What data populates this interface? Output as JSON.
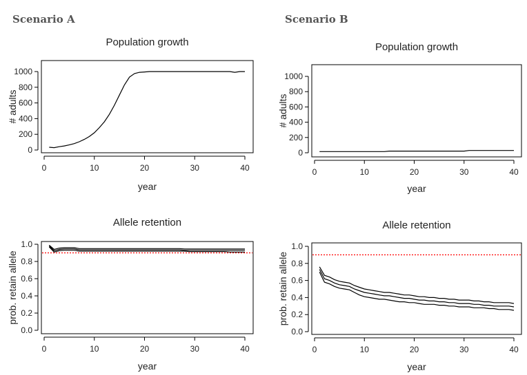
{
  "scenarios": [
    "Scenario A",
    "Scenario B"
  ],
  "colors": {
    "line": "#000000",
    "threshold": "#ff0000"
  },
  "chart_data": [
    {
      "scenario": "Scenario A",
      "type": "line",
      "title": "Population growth",
      "xlabel": "year",
      "ylabel": "# adults",
      "xlim": [
        0,
        40
      ],
      "ylim": [
        0,
        1100
      ],
      "xticks": [
        0,
        10,
        20,
        30,
        40
      ],
      "yticks": [
        0,
        200,
        400,
        600,
        800,
        1000
      ],
      "grid": false,
      "x_start": 1,
      "series": [
        {
          "values": [
            35,
            30,
            42,
            52,
            65,
            82,
            105,
            135,
            172,
            220,
            285,
            360,
            455,
            570,
            700,
            830,
            930,
            975,
            990,
            995,
            1000,
            1000,
            1000,
            1000,
            1000,
            1000,
            1000,
            1000,
            1000,
            1000,
            1000,
            1000,
            1000,
            1000,
            1000,
            1000,
            1000,
            990,
            1000,
            1000
          ]
        }
      ]
    },
    {
      "scenario": "Scenario B",
      "type": "line",
      "title": "Population growth",
      "xlabel": "year",
      "ylabel": "# adults",
      "xlim": [
        0,
        40
      ],
      "ylim": [
        0,
        1100
      ],
      "xticks": [
        0,
        10,
        20,
        30,
        40
      ],
      "yticks": [
        0,
        200,
        400,
        600,
        800,
        1000
      ],
      "grid": false,
      "x_start": 1,
      "series": [
        {
          "values": [
            15,
            15,
            15,
            15,
            15,
            15,
            15,
            15,
            15,
            15,
            15,
            15,
            15,
            15,
            22,
            22,
            22,
            22,
            22,
            22,
            22,
            22,
            22,
            22,
            22,
            22,
            22,
            22,
            22,
            22,
            30,
            30,
            30,
            30,
            30,
            30,
            30,
            30,
            30,
            30
          ]
        }
      ]
    },
    {
      "scenario": "Scenario A",
      "type": "line",
      "title": "Allele retention",
      "xlabel": "year",
      "ylabel": "prob. retain allele",
      "xlim": [
        0,
        40
      ],
      "ylim": [
        0,
        1.0
      ],
      "xticks": [
        0,
        10,
        20,
        30,
        40
      ],
      "yticks": [
        0.0,
        0.2,
        0.4,
        0.6,
        0.8,
        1.0
      ],
      "ytick_labels": [
        "0.0",
        "0.2",
        "0.4",
        "0.6",
        "0.8",
        "1.0"
      ],
      "grid": false,
      "x_start": 1,
      "threshold": 0.9,
      "series": [
        {
          "values": [
            0.99,
            0.94,
            0.955,
            0.96,
            0.96,
            0.96,
            0.95,
            0.95,
            0.95,
            0.95,
            0.95,
            0.95,
            0.95,
            0.95,
            0.95,
            0.95,
            0.95,
            0.95,
            0.95,
            0.95,
            0.95,
            0.95,
            0.95,
            0.95,
            0.95,
            0.95,
            0.95,
            0.945,
            0.945,
            0.945,
            0.945,
            0.945,
            0.945,
            0.945,
            0.945,
            0.945,
            0.945,
            0.945,
            0.945,
            0.945
          ]
        },
        {
          "values": [
            0.98,
            0.925,
            0.94,
            0.945,
            0.945,
            0.945,
            0.935,
            0.935,
            0.935,
            0.935,
            0.935,
            0.935,
            0.935,
            0.935,
            0.935,
            0.935,
            0.935,
            0.935,
            0.935,
            0.935,
            0.935,
            0.935,
            0.935,
            0.935,
            0.935,
            0.935,
            0.935,
            0.93,
            0.93,
            0.93,
            0.93,
            0.93,
            0.93,
            0.93,
            0.93,
            0.93,
            0.93,
            0.93,
            0.93,
            0.93
          ]
        },
        {
          "values": [
            0.97,
            0.91,
            0.925,
            0.93,
            0.93,
            0.93,
            0.92,
            0.92,
            0.92,
            0.92,
            0.92,
            0.92,
            0.92,
            0.92,
            0.92,
            0.92,
            0.92,
            0.92,
            0.92,
            0.92,
            0.92,
            0.92,
            0.92,
            0.92,
            0.92,
            0.92,
            0.92,
            0.92,
            0.915,
            0.915,
            0.915,
            0.915,
            0.915,
            0.915,
            0.915,
            0.915,
            0.91,
            0.91,
            0.91,
            0.91
          ]
        }
      ]
    },
    {
      "scenario": "Scenario B",
      "type": "line",
      "title": "Allele retention",
      "xlabel": "year",
      "ylabel": "prob. retain allele",
      "xlim": [
        0,
        40
      ],
      "ylim": [
        0,
        1.0
      ],
      "xticks": [
        0,
        10,
        20,
        30,
        40
      ],
      "yticks": [
        0.0,
        0.2,
        0.4,
        0.6,
        0.8,
        1.0
      ],
      "ytick_labels": [
        "0.0",
        "0.2",
        "0.4",
        "0.6",
        "0.8",
        "1.0"
      ],
      "grid": false,
      "x_start": 1,
      "threshold": 0.9,
      "series": [
        {
          "values": [
            0.76,
            0.66,
            0.64,
            0.61,
            0.59,
            0.58,
            0.57,
            0.54,
            0.52,
            0.5,
            0.49,
            0.48,
            0.47,
            0.46,
            0.46,
            0.45,
            0.44,
            0.43,
            0.43,
            0.42,
            0.41,
            0.41,
            0.4,
            0.4,
            0.39,
            0.39,
            0.38,
            0.38,
            0.37,
            0.37,
            0.37,
            0.36,
            0.36,
            0.35,
            0.35,
            0.34,
            0.34,
            0.34,
            0.34,
            0.33
          ]
        },
        {
          "values": [
            0.73,
            0.62,
            0.6,
            0.57,
            0.55,
            0.54,
            0.53,
            0.5,
            0.48,
            0.46,
            0.45,
            0.44,
            0.43,
            0.42,
            0.42,
            0.41,
            0.4,
            0.39,
            0.39,
            0.38,
            0.37,
            0.37,
            0.36,
            0.36,
            0.35,
            0.35,
            0.34,
            0.34,
            0.33,
            0.33,
            0.33,
            0.32,
            0.32,
            0.31,
            0.31,
            0.3,
            0.3,
            0.3,
            0.3,
            0.29
          ]
        },
        {
          "values": [
            0.7,
            0.58,
            0.56,
            0.53,
            0.51,
            0.5,
            0.49,
            0.46,
            0.43,
            0.41,
            0.4,
            0.39,
            0.38,
            0.38,
            0.37,
            0.36,
            0.35,
            0.35,
            0.34,
            0.34,
            0.33,
            0.32,
            0.32,
            0.32,
            0.31,
            0.31,
            0.3,
            0.3,
            0.29,
            0.29,
            0.29,
            0.28,
            0.28,
            0.28,
            0.27,
            0.27,
            0.26,
            0.26,
            0.26,
            0.25
          ]
        }
      ]
    }
  ]
}
